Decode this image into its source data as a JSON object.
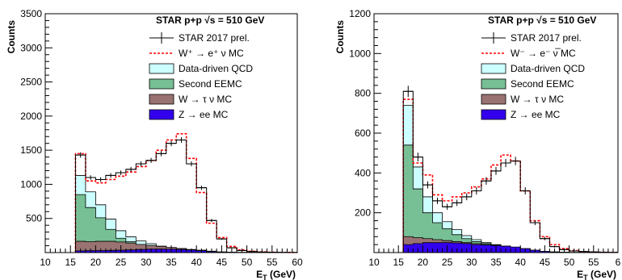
{
  "chart_data": [
    {
      "type": "histogram",
      "title": "STAR p+p  √s = 510 GeV",
      "xlabel": "E_T (GeV)",
      "ylabel": "Counts",
      "xlim": [
        10,
        60
      ],
      "ylim": [
        0,
        3500
      ],
      "xticks": [
        "10",
        "15",
        "20",
        "25",
        "30",
        "35",
        "40",
        "45",
        "50",
        "55",
        "60"
      ],
      "yticks": [
        "500",
        "1000",
        "1500",
        "2000",
        "2500",
        "3000",
        "3500"
      ],
      "bin_edges": [
        16,
        18,
        20,
        22,
        24,
        26,
        28,
        30,
        32,
        34,
        36,
        38,
        40,
        42,
        44,
        46,
        48,
        50,
        52,
        54,
        56,
        58,
        60
      ],
      "legend": [
        {
          "label": "STAR 2017 prel.",
          "style": "data",
          "color": "#000000"
        },
        {
          "label": "W⁺ → e⁺ ν MC",
          "style": "dashed",
          "color": "#ff0000"
        },
        {
          "label": "Data-driven QCD",
          "style": "fill",
          "color": "#ccffff"
        },
        {
          "label": "Second EEMC",
          "style": "fill",
          "color": "#77bf94"
        },
        {
          "label": "W → τ ν MC",
          "style": "fill",
          "color": "#997272"
        },
        {
          "label": "Z → ee MC",
          "style": "fill",
          "color": "#3300ee"
        }
      ],
      "series": [
        {
          "name": "STAR 2017 prel.",
          "values": [
            1430,
            1100,
            1070,
            1130,
            1170,
            1220,
            1300,
            1350,
            1450,
            1600,
            1650,
            1300,
            950,
            470,
            200,
            70,
            30,
            15,
            8,
            5,
            3,
            2
          ],
          "errors": [
            40,
            33,
            33,
            34,
            34,
            35,
            36,
            37,
            38,
            40,
            41,
            36,
            31,
            22,
            14,
            8,
            6,
            4,
            3,
            2,
            2,
            1
          ]
        },
        {
          "name": "W⁺ → e⁺ ν MC",
          "values": [
            1450,
            1050,
            1020,
            1070,
            1120,
            1180,
            1260,
            1350,
            1500,
            1650,
            1740,
            1380,
            880,
            430,
            220,
            90,
            40,
            18,
            10,
            6,
            3,
            2
          ]
        },
        {
          "name": "Z → ee MC",
          "values": [
            25,
            28,
            30,
            32,
            35,
            40,
            45,
            50,
            52,
            50,
            45,
            38,
            28,
            15,
            8,
            4,
            2,
            1,
            1,
            0,
            0,
            0
          ]
        },
        {
          "name": "W → τ ν MC",
          "values": [
            165,
            160,
            165,
            165,
            155,
            140,
            120,
            105,
            90,
            75,
            60,
            45,
            35,
            20,
            10,
            5,
            3,
            1,
            1,
            0,
            0,
            0
          ]
        },
        {
          "name": "Second EEMC",
          "values": [
            850,
            660,
            510,
            340,
            210,
            160,
            120,
            90,
            65,
            50,
            35,
            25,
            15,
            8,
            4,
            2,
            1,
            0,
            0,
            0,
            0,
            0
          ]
        },
        {
          "name": "Data-driven QCD",
          "values": [
            1130,
            890,
            700,
            490,
            320,
            230,
            170,
            130,
            95,
            72,
            52,
            36,
            22,
            12,
            6,
            3,
            2,
            1,
            0,
            0,
            0,
            0
          ]
        }
      ]
    },
    {
      "type": "histogram",
      "title": "STAR p+p  √s = 510 GeV",
      "xlabel": "E_T (GeV)",
      "ylabel": "Counts",
      "xlim": [
        10,
        60
      ],
      "ylim": [
        0,
        1200
      ],
      "xticks": [
        "10",
        "15",
        "20",
        "25",
        "30",
        "35",
        "40",
        "45",
        "50",
        "55",
        "6"
      ],
      "yticks": [
        "200",
        "400",
        "600",
        "800",
        "1000",
        "1200"
      ],
      "bin_edges": [
        16,
        18,
        20,
        22,
        24,
        26,
        28,
        30,
        32,
        34,
        36,
        38,
        40,
        42,
        44,
        46,
        48,
        50,
        52,
        54,
        56,
        58,
        60
      ],
      "legend": [
        {
          "label": "STAR 2017 prel.",
          "style": "data",
          "color": "#000000"
        },
        {
          "label": "W⁻ → e⁻ ν̅ MC",
          "style": "dashed",
          "color": "#ff0000"
        },
        {
          "label": "Data-driven QCD",
          "style": "fill",
          "color": "#ccffff"
        },
        {
          "label": "Second EEMC",
          "style": "fill",
          "color": "#77bf94"
        },
        {
          "label": "W → τ ν MC",
          "style": "fill",
          "color": "#997272"
        },
        {
          "label": "Z → ee MC",
          "style": "fill",
          "color": "#3300ee"
        }
      ],
      "series": [
        {
          "name": "STAR 2017 prel.",
          "values": [
            810,
            480,
            340,
            260,
            230,
            250,
            280,
            310,
            360,
            410,
            450,
            460,
            310,
            150,
            70,
            30,
            15,
            8,
            5,
            3,
            2,
            1
          ],
          "errors": [
            28,
            22,
            18,
            16,
            15,
            16,
            17,
            18,
            19,
            20,
            21,
            21,
            18,
            12,
            8,
            5,
            4,
            3,
            2,
            2,
            1,
            1
          ]
        },
        {
          "name": "W⁻ → e⁻ ν̅ MC",
          "values": [
            770,
            450,
            390,
            290,
            260,
            280,
            300,
            330,
            370,
            440,
            490,
            460,
            310,
            160,
            80,
            40,
            20,
            10,
            5,
            3,
            2,
            1
          ]
        },
        {
          "name": "Z → ee MC",
          "values": [
            40,
            45,
            50,
            50,
            50,
            48,
            45,
            40,
            38,
            35,
            32,
            28,
            20,
            12,
            6,
            3,
            2,
            1,
            0,
            0,
            0,
            0
          ]
        },
        {
          "name": "W → τ ν MC",
          "values": [
            80,
            75,
            70,
            65,
            60,
            55,
            50,
            45,
            40,
            35,
            30,
            25,
            18,
            10,
            5,
            3,
            1,
            1,
            0,
            0,
            0,
            0
          ]
        },
        {
          "name": "Second EEMC",
          "values": [
            540,
            320,
            200,
            150,
            120,
            90,
            70,
            55,
            45,
            38,
            32,
            25,
            18,
            10,
            5,
            3,
            1,
            0,
            0,
            0,
            0,
            0
          ]
        },
        {
          "name": "Data-driven QCD",
          "values": [
            740,
            430,
            280,
            200,
            155,
            115,
            85,
            65,
            50,
            40,
            33,
            26,
            19,
            11,
            5,
            3,
            1,
            0,
            0,
            0,
            0,
            0
          ]
        }
      ]
    }
  ]
}
